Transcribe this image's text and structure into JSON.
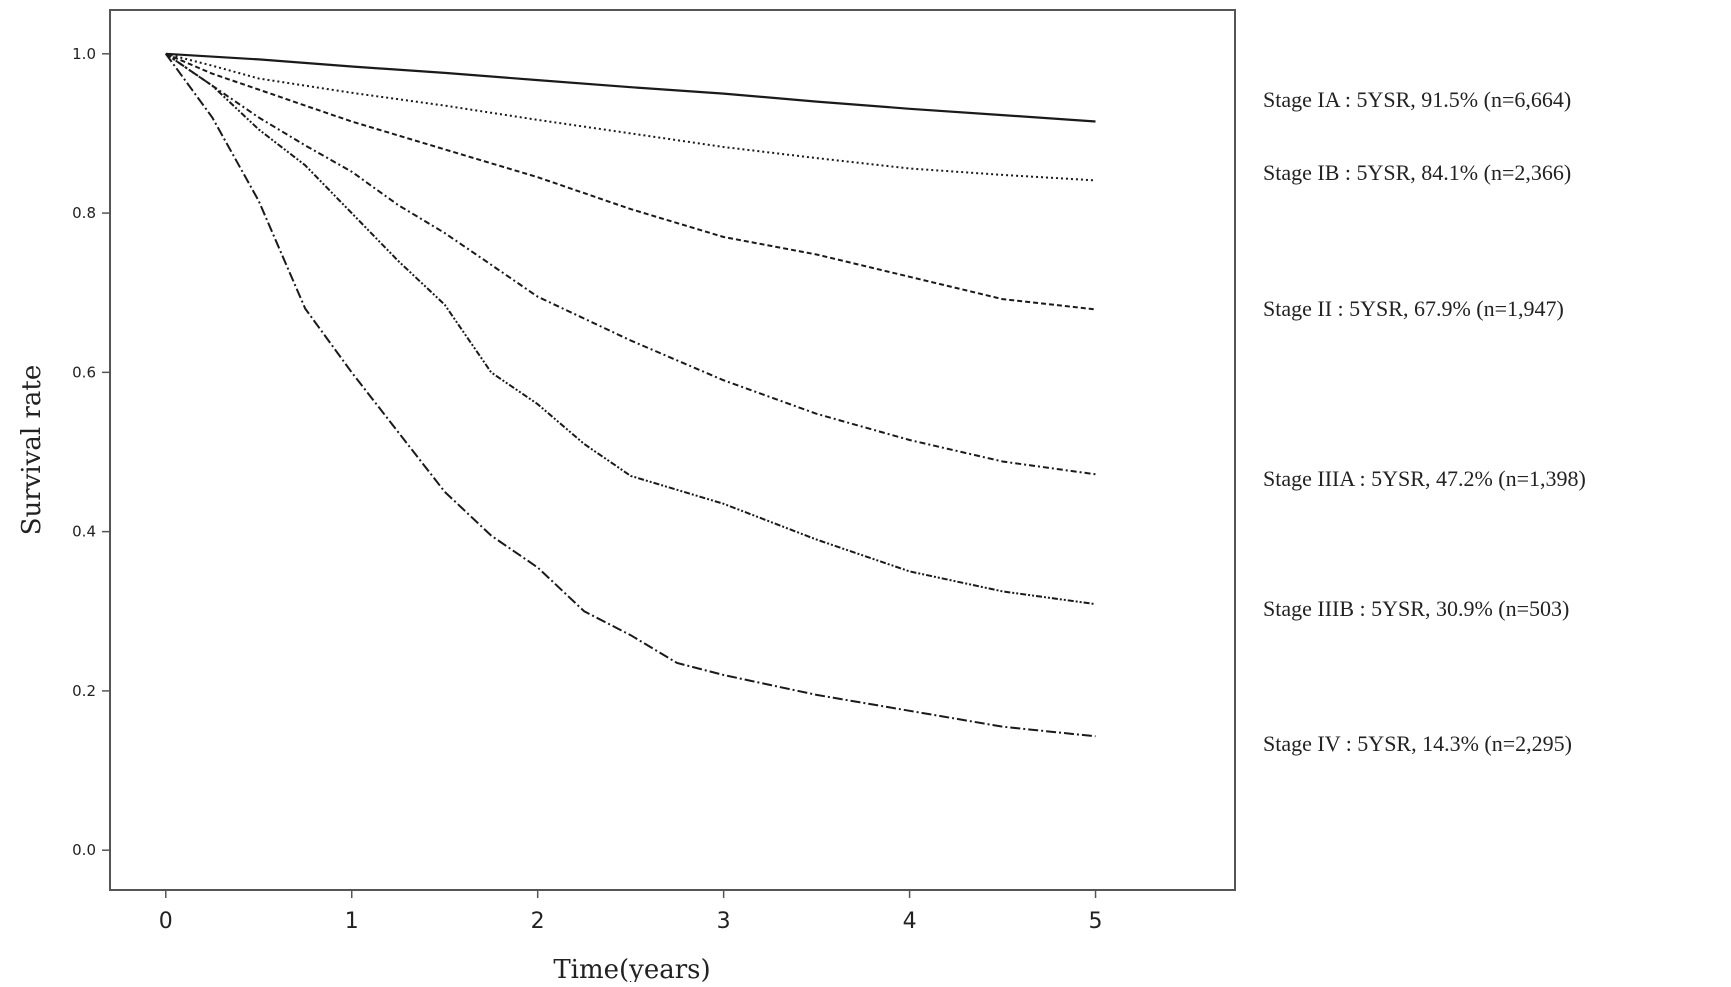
{
  "chart_data": {
    "type": "line",
    "title": "",
    "xlabel": "Time(years)",
    "ylabel": "Survival rate",
    "xlim": [
      -0.3,
      5.75
    ],
    "ylim": [
      -0.05,
      1.055
    ],
    "xticks": [
      "0",
      "1",
      "2",
      "3",
      "4",
      "5"
    ],
    "yticks": [
      "0.0",
      "0.2",
      "0.4",
      "0.6",
      "0.8",
      "1.0"
    ],
    "grid": false,
    "legend": "none",
    "series": [
      {
        "label": "Stage IA : 5YSR, 91.5% (n=6,664)",
        "style": "solid",
        "x": [
          0,
          0.5,
          1,
          1.5,
          2,
          2.5,
          3,
          3.5,
          4,
          4.5,
          5
        ],
        "y": [
          1.0,
          0.993,
          0.984,
          0.976,
          0.967,
          0.958,
          0.95,
          0.94,
          0.931,
          0.923,
          0.915
        ]
      },
      {
        "label": "Stage IB : 5YSR, 84.1% (n=2,366)",
        "style": "dotted",
        "x": [
          0,
          0.25,
          0.5,
          1,
          1.5,
          2,
          2.5,
          3,
          3.5,
          4,
          4.5,
          5
        ],
        "y": [
          1.0,
          0.985,
          0.969,
          0.951,
          0.935,
          0.917,
          0.9,
          0.883,
          0.869,
          0.856,
          0.848,
          0.841
        ]
      },
      {
        "label": "Stage II : 5YSR, 67.9% (n=1,947)",
        "style": "dashed",
        "x": [
          0,
          0.25,
          0.5,
          0.75,
          1,
          1.5,
          2,
          2.5,
          3,
          3.5,
          4,
          4.5,
          5
        ],
        "y": [
          1.0,
          0.975,
          0.955,
          0.935,
          0.915,
          0.88,
          0.845,
          0.805,
          0.77,
          0.748,
          0.72,
          0.692,
          0.679
        ]
      },
      {
        "label": "Stage IIIA : 5YSR, 47.2% (n=1,398)",
        "style": "dash-dot",
        "x": [
          0,
          0.25,
          0.5,
          0.75,
          1,
          1.25,
          1.5,
          1.75,
          2,
          2.5,
          3,
          3.5,
          4,
          4.5,
          5
        ],
        "y": [
          1.0,
          0.96,
          0.92,
          0.885,
          0.852,
          0.81,
          0.775,
          0.735,
          0.695,
          0.64,
          0.59,
          0.548,
          0.515,
          0.488,
          0.472
        ]
      },
      {
        "label": "Stage IIIB : 5YSR, 30.9% (n=503)",
        "style": "dash-dot-dot",
        "x": [
          0,
          0.25,
          0.5,
          0.75,
          1,
          1.25,
          1.5,
          1.75,
          2,
          2.25,
          2.5,
          3,
          3.5,
          4,
          4.5,
          5
        ],
        "y": [
          1.0,
          0.96,
          0.905,
          0.86,
          0.8,
          0.74,
          0.685,
          0.6,
          0.56,
          0.51,
          0.47,
          0.435,
          0.39,
          0.35,
          0.325,
          0.309
        ]
      },
      {
        "label": "Stage IV : 5YSR, 14.3% (n=2,295)",
        "style": "long-dash-dot",
        "x": [
          0,
          0.25,
          0.5,
          0.75,
          1,
          1.25,
          1.5,
          1.75,
          2,
          2.25,
          2.5,
          2.75,
          3,
          3.5,
          4,
          4.5,
          5
        ],
        "y": [
          1.0,
          0.92,
          0.815,
          0.68,
          0.6,
          0.525,
          0.45,
          0.395,
          0.355,
          0.3,
          0.27,
          0.235,
          0.22,
          0.195,
          0.175,
          0.155,
          0.143
        ]
      }
    ]
  }
}
